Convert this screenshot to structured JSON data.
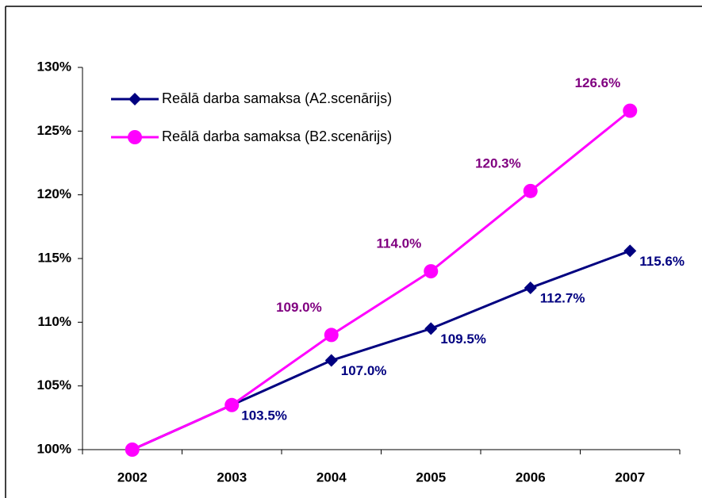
{
  "chart_data": {
    "type": "line",
    "categories": [
      "2002",
      "2003",
      "2004",
      "2005",
      "2006",
      "2007"
    ],
    "series": [
      {
        "name": "Reālā darba samaksa (A2.scenārijs)",
        "color": "#000080",
        "label_color": "#000080",
        "marker": "diamond",
        "values": [
          100,
          103.5,
          107.0,
          109.5,
          112.7,
          115.6
        ],
        "value_labels": [
          null,
          "103.5%",
          "107.0%",
          "109.5%",
          "112.7%",
          "115.6%"
        ]
      },
      {
        "name": "Reālā darba samaksa (B2.scenārijs)",
        "color": "#ff00ff",
        "label_color": "#800080",
        "marker": "circle",
        "values": [
          100,
          103.5,
          109.0,
          114.0,
          120.3,
          126.6
        ],
        "value_labels": [
          null,
          null,
          "109.0%",
          "114.0%",
          "120.3%",
          "126.6%"
        ]
      }
    ],
    "ylim": [
      100,
      130
    ],
    "yticks": [
      {
        "value": 100,
        "label": "100%"
      },
      {
        "value": 105,
        "label": "105%"
      },
      {
        "value": 110,
        "label": "110%"
      },
      {
        "value": 115,
        "label": "115%"
      },
      {
        "value": 120,
        "label": "120%"
      },
      {
        "value": 125,
        "label": "125%"
      },
      {
        "value": 130,
        "label": "130%"
      }
    ],
    "grid": false,
    "legend": "upper left"
  }
}
